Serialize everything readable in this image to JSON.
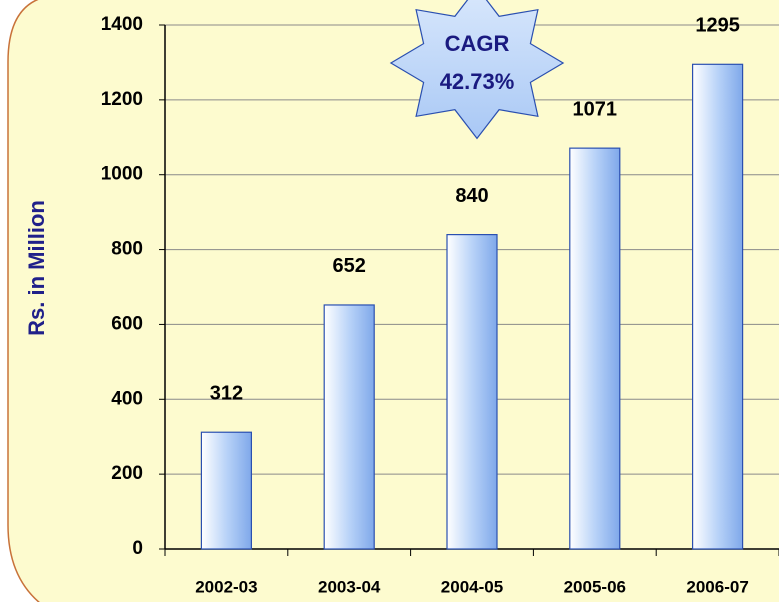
{
  "chart_data": {
    "type": "bar",
    "y_label": "Rs. in Million",
    "annotation": [
      "CAGR",
      "42.73%"
    ],
    "categories": [
      "2002-03",
      "2003-04",
      "2004-05",
      "2005-06",
      "2006-07"
    ],
    "values": [
      312,
      652,
      840,
      1071,
      1295
    ],
    "color": "#9fc3f5",
    "ylim": [
      0,
      1400
    ],
    "yticks": [
      0,
      200,
      400,
      600,
      800,
      1000,
      1200,
      1400
    ],
    "grid": true
  }
}
